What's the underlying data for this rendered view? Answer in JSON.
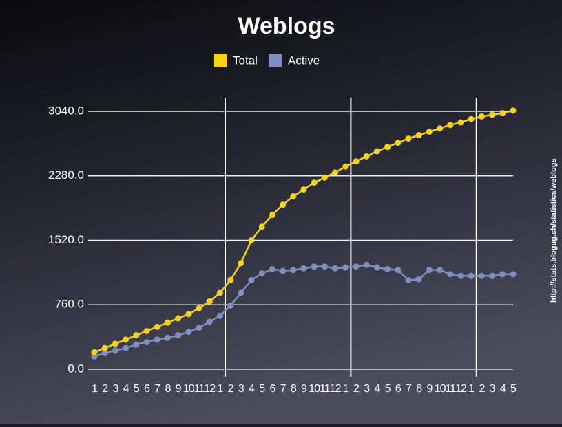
{
  "chart_data": {
    "type": "line",
    "title": "Weblogs",
    "source": "http://stats.blogug.ch/statistics/weblogs",
    "categories": [
      "1",
      "2",
      "3",
      "4",
      "5",
      "6",
      "7",
      "8",
      "9",
      "10",
      "11",
      "12",
      "1",
      "2",
      "3",
      "4",
      "5",
      "6",
      "7",
      "8",
      "9",
      "10",
      "11",
      "12",
      "1",
      "2",
      "3",
      "4",
      "5",
      "6",
      "7",
      "8",
      "9",
      "10",
      "11",
      "12",
      "1",
      "2",
      "3",
      "4",
      "5"
    ],
    "series": [
      {
        "name": "Total",
        "color": "#f5d31c",
        "values": [
          200,
          250,
          300,
          350,
          400,
          450,
          500,
          550,
          600,
          650,
          720,
          800,
          900,
          1050,
          1250,
          1520,
          1680,
          1820,
          1940,
          2040,
          2120,
          2200,
          2260,
          2320,
          2390,
          2450,
          2510,
          2570,
          2620,
          2670,
          2720,
          2760,
          2800,
          2840,
          2880,
          2910,
          2950,
          2980,
          3000,
          3020,
          3050
        ]
      },
      {
        "name": "Active",
        "color": "#7f8fc0",
        "values": [
          150,
          190,
          220,
          250,
          290,
          320,
          350,
          370,
          400,
          440,
          490,
          560,
          630,
          750,
          900,
          1050,
          1130,
          1180,
          1160,
          1170,
          1190,
          1210,
          1210,
          1190,
          1200,
          1210,
          1230,
          1200,
          1180,
          1170,
          1050,
          1060,
          1170,
          1170,
          1120,
          1100,
          1100,
          1100,
          1100,
          1120,
          1120
        ]
      }
    ],
    "ylim": [
      0,
      3040
    ],
    "yticks": [
      {
        "value": 0,
        "label": "0.0"
      },
      {
        "value": 760,
        "label": "760.0"
      },
      {
        "value": 1520,
        "label": "1520.0"
      },
      {
        "value": 2280,
        "label": "2280.0"
      },
      {
        "value": 3040,
        "label": "3040.0"
      }
    ],
    "grid": true,
    "legend": "top"
  }
}
